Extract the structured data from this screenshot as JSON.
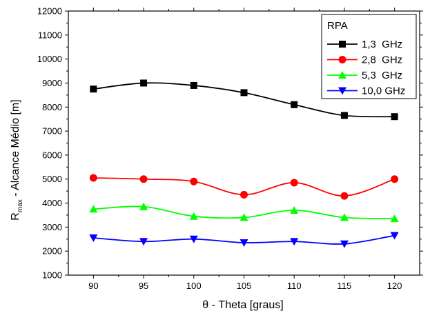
{
  "chart_data": {
    "type": "line",
    "xlabel_symbol": "θ",
    "xlabel_text": " - Theta [graus]",
    "ylabel_main": "R",
    "ylabel_sub": "max",
    "ylabel_rest": " - Alcance Médio [m]",
    "x": [
      90,
      95,
      100,
      105,
      110,
      115,
      120
    ],
    "xlim": [
      87.5,
      122.5
    ],
    "ylim": [
      1000,
      12000
    ],
    "xticks": [
      90,
      95,
      100,
      105,
      110,
      115,
      120
    ],
    "yticks": [
      1000,
      2000,
      3000,
      4000,
      5000,
      6000,
      7000,
      8000,
      9000,
      10000,
      11000,
      12000
    ],
    "grid": "off",
    "legend_title": "RPA",
    "legend_position": "top-right",
    "series": [
      {
        "name": "1,3  GHz",
        "color": "#000000",
        "marker": "square",
        "values": [
          8750,
          9000,
          8900,
          8600,
          8100,
          7650,
          7600
        ]
      },
      {
        "name": "2,8  GHz",
        "color": "#ff0000",
        "marker": "circle",
        "values": [
          5050,
          5000,
          4900,
          4350,
          4850,
          4300,
          5000
        ]
      },
      {
        "name": "5,3  GHz",
        "color": "#00ff00",
        "marker": "triangle-up",
        "values": [
          3750,
          3850,
          3450,
          3400,
          3700,
          3400,
          3350
        ]
      },
      {
        "name": "10,0 GHz",
        "color": "#0000ff",
        "marker": "triangle-down",
        "values": [
          2550,
          2400,
          2500,
          2350,
          2400,
          2300,
          2650
        ]
      }
    ]
  }
}
